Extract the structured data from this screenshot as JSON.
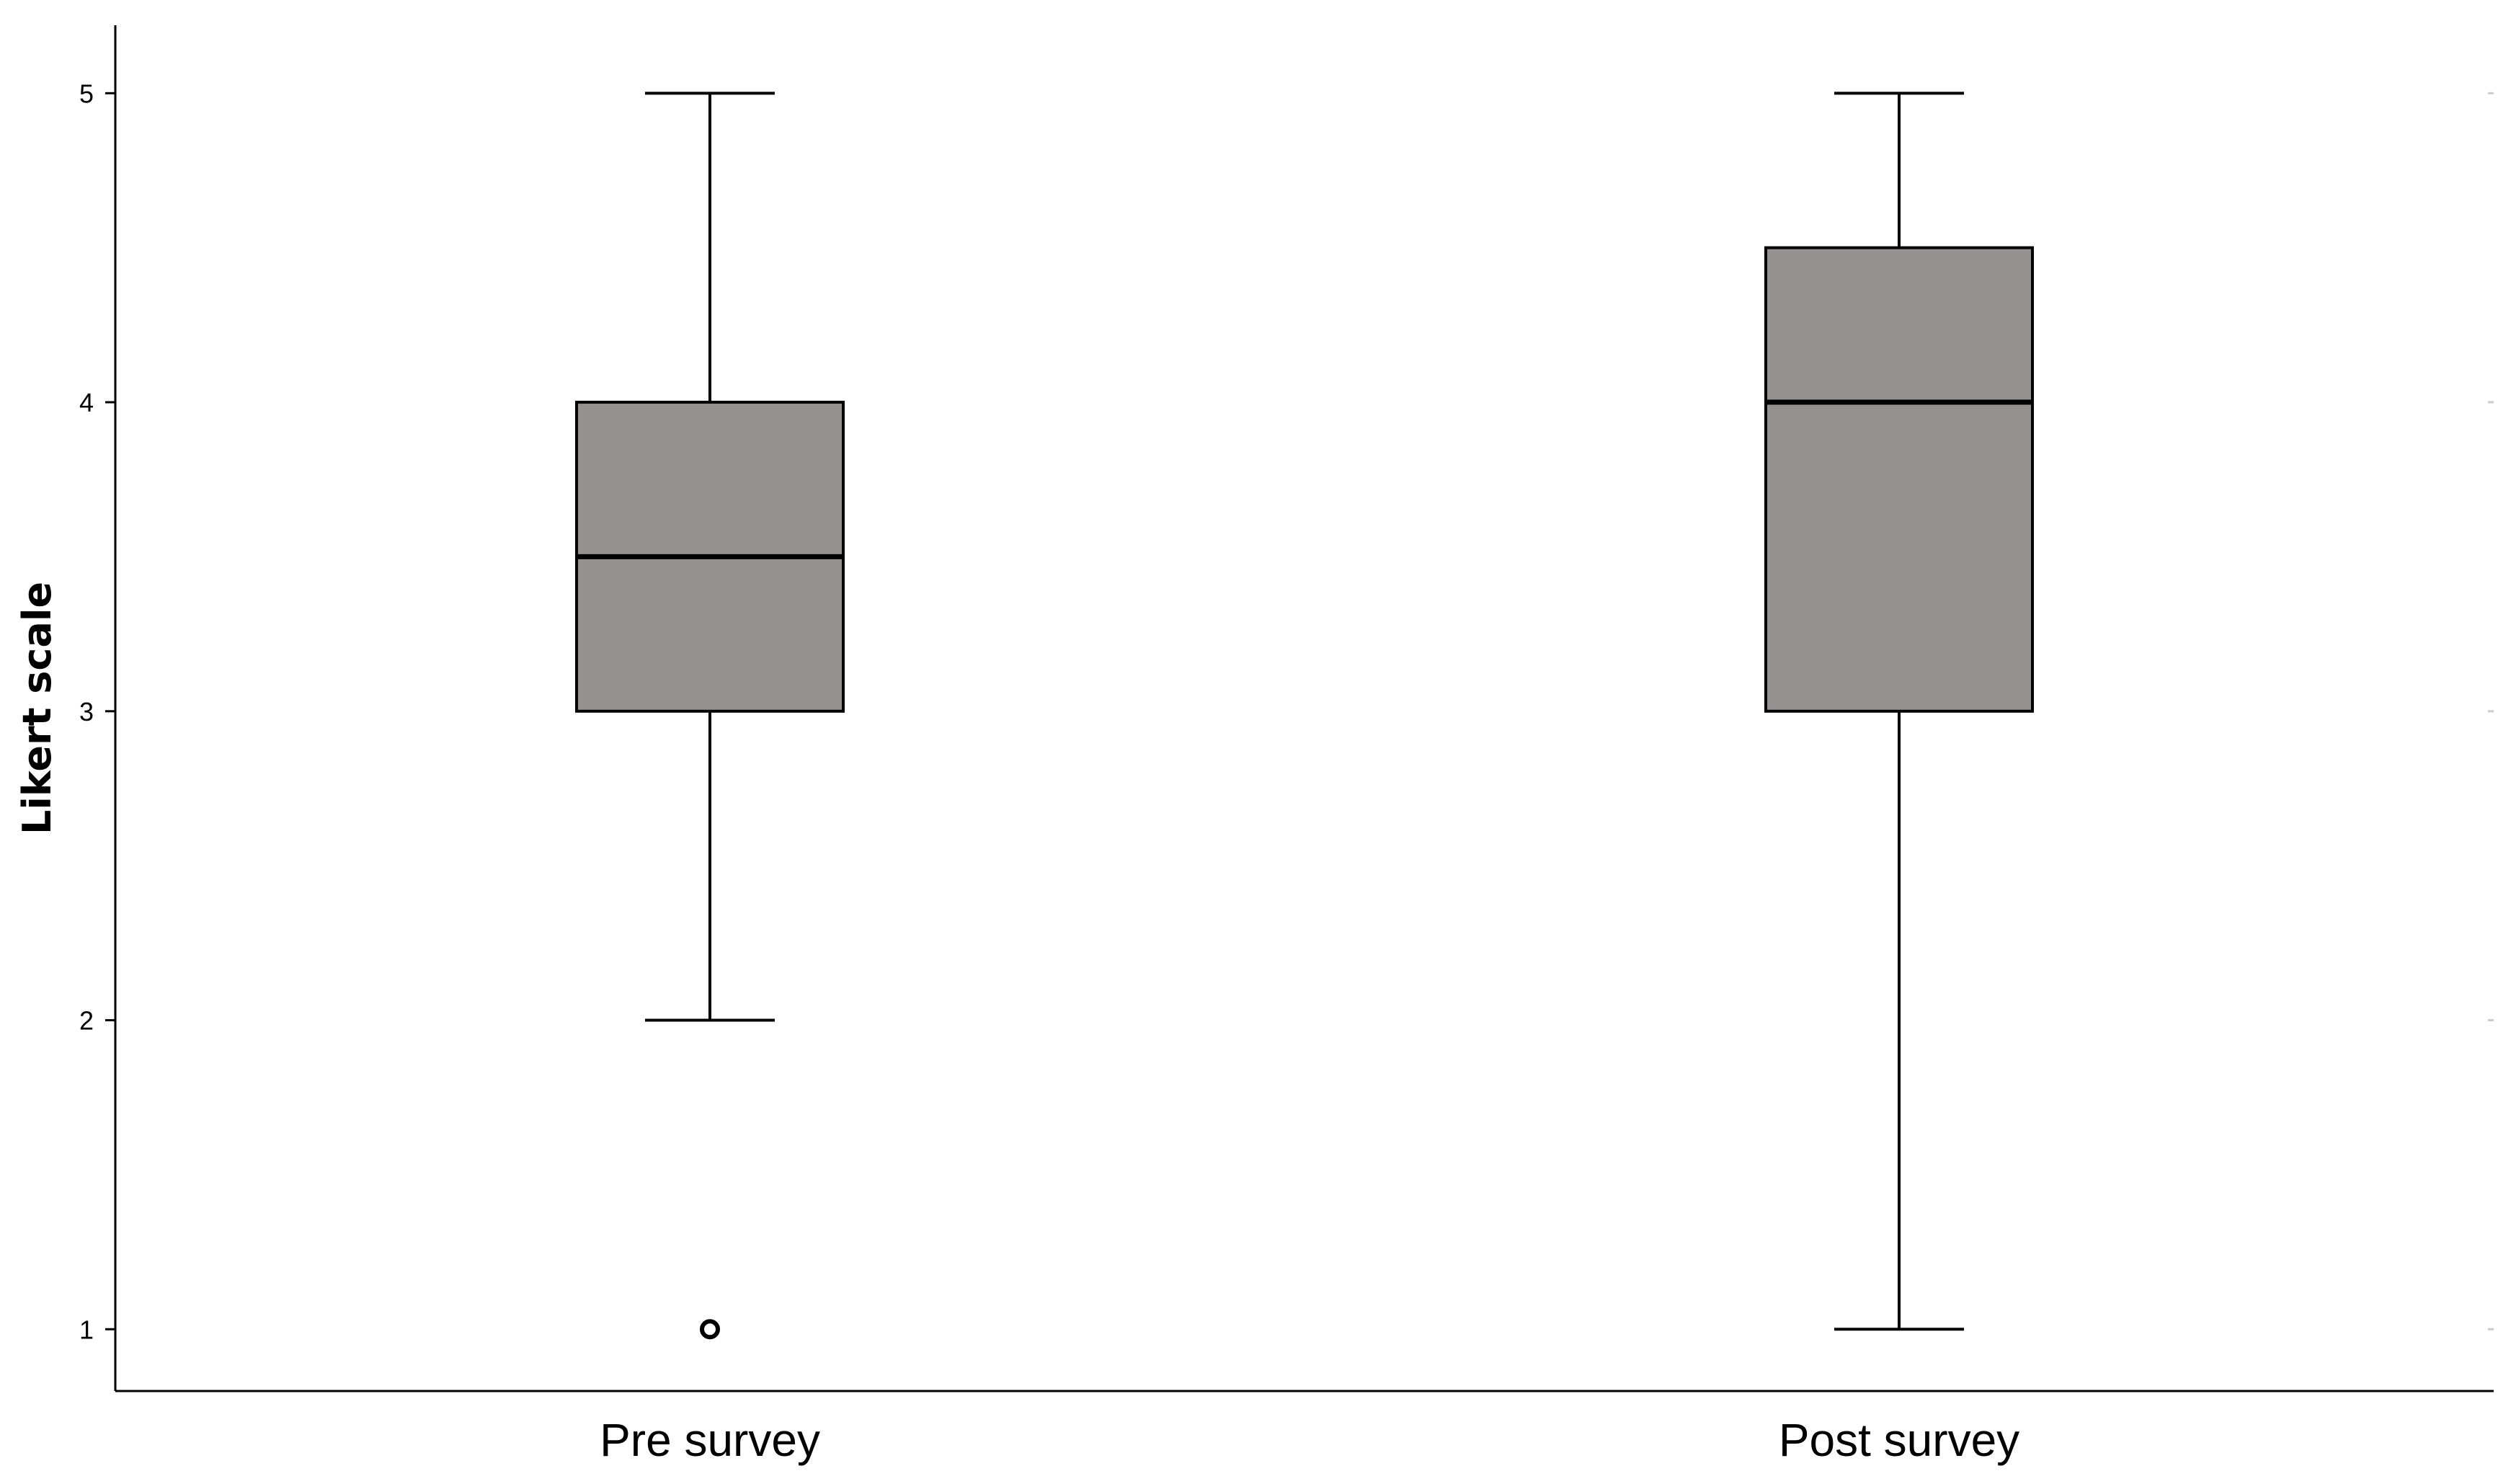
{
  "chart_data": {
    "type": "boxplot",
    "title": "",
    "xlabel": "",
    "ylabel": "Likert scale",
    "ylim": [
      0.8,
      5.22
    ],
    "yticks": [
      "1",
      "2",
      "3",
      "4",
      "5"
    ],
    "grid": false,
    "categories": [
      "Pre survey",
      "Post survey"
    ],
    "boxes": [
      {
        "category": "Pre survey",
        "whisker_low": 2,
        "q1": 3,
        "median": 3.5,
        "q3": 4,
        "whisker_high": 5,
        "outliers": [
          1
        ]
      },
      {
        "category": "Post survey",
        "whisker_low": 1,
        "q1": 3,
        "median": 4,
        "q3": 4.5,
        "whisker_high": 5,
        "outliers": []
      }
    ],
    "colors": {
      "box_fill": "#949190",
      "line": "#000000",
      "axis": "#000000"
    }
  }
}
